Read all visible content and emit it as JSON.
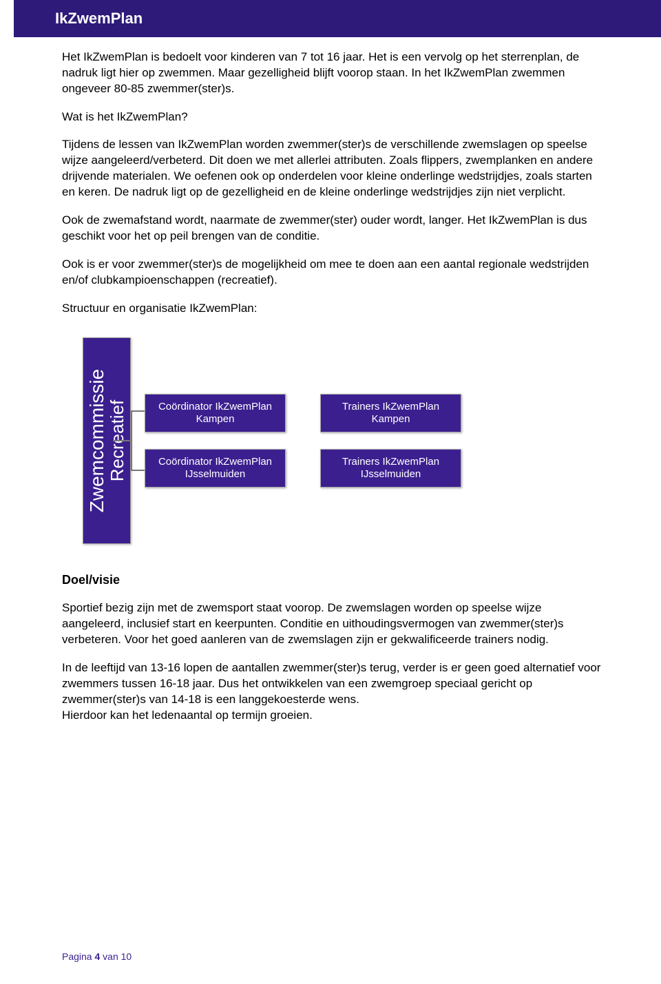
{
  "colors": {
    "header_bg": "#2e1a78",
    "box_bg": "#3b1f8f",
    "box_border": "#aaaaaa",
    "connector": "#777777",
    "text": "#000000",
    "footer": "#3b1f8f",
    "page_bg": "#ffffff"
  },
  "header": {
    "title": "IkZwemPlan"
  },
  "body": {
    "p1": "Het IkZwemPlan is bedoelt voor kinderen van 7 tot 16 jaar. Het is een vervolg op het sterrenplan, de nadruk ligt hier op zwemmen. Maar gezelligheid blijft voorop staan. In het IkZwemPlan zwemmen ongeveer 80-85 zwemmer(ster)s.",
    "p2": "Wat is het IkZwemPlan?",
    "p3": "Tijdens de lessen van IkZwemPlan worden zwemmer(ster)s de verschillende zwemslagen op speelse wijze aangeleerd/verbeterd. Dit doen we met allerlei attributen. Zoals flippers, zwemplanken en andere drijvende materialen. We oefenen ook op onderdelen voor kleine onderlinge wedstrijdjes, zoals starten en keren. De nadruk ligt op de gezelligheid en de kleine onderlinge wedstrijdjes zijn niet verplicht.",
    "p4": "Ook de zwemafstand wordt, naarmate de zwemmer(ster) ouder wordt, langer. Het IkZwemPlan is dus geschikt voor het op peil brengen van de conditie.",
    "p5": "Ook is er voor zwemmer(ster)s de mogelijkheid om mee te doen aan een aantal regionale wedstrijden en/of clubkampioenschappen (recreatief).",
    "p6": "Structuur en organisatie IkZwemPlan:",
    "doel_heading": "Doel/visie",
    "doel_p1": "Sportief bezig zijn met de zwemsport staat voorop. De zwemslagen worden op speelse wijze aangeleerd, inclusief start en keerpunten. Conditie en uithoudingsvermogen van zwemmer(ster)s verbeteren. Voor het goed aanleren van de zwemslagen zijn er gekwalificeerde trainers nodig.",
    "doel_p2": "In de leeftijd van 13-16 lopen de aantallen zwemmer(ster)s terug, verder is er geen goed alternatief voor zwemmers tussen 16-18 jaar. Dus het ontwikkelen van een zwemgroep speciaal gericht op zwemmer(ster)s van 14-18 is een langgekoesterde wens.",
    "doel_p3": "Hierdoor kan het ledenaantal op termijn groeien."
  },
  "org": {
    "root_line1": "Zwemcommissie",
    "root_line2": "Recreatief",
    "boxes": {
      "coord_kampen_l1": "Coördinator IkZwemPlan",
      "coord_kampen_l2": "Kampen",
      "train_kampen_l1": "Trainers IkZwemPlan",
      "train_kampen_l2": "Kampen",
      "coord_ijssel_l1": "Coördinator IkZwemPlan",
      "coord_ijssel_l2": "IJsselmuiden",
      "train_ijssel_l1": "Trainers IkZwemPlan",
      "train_ijssel_l2": "IJsselmuiden"
    }
  },
  "footer": {
    "prefix": "Pagina ",
    "current": "4",
    "middle": " van ",
    "total": "10"
  }
}
